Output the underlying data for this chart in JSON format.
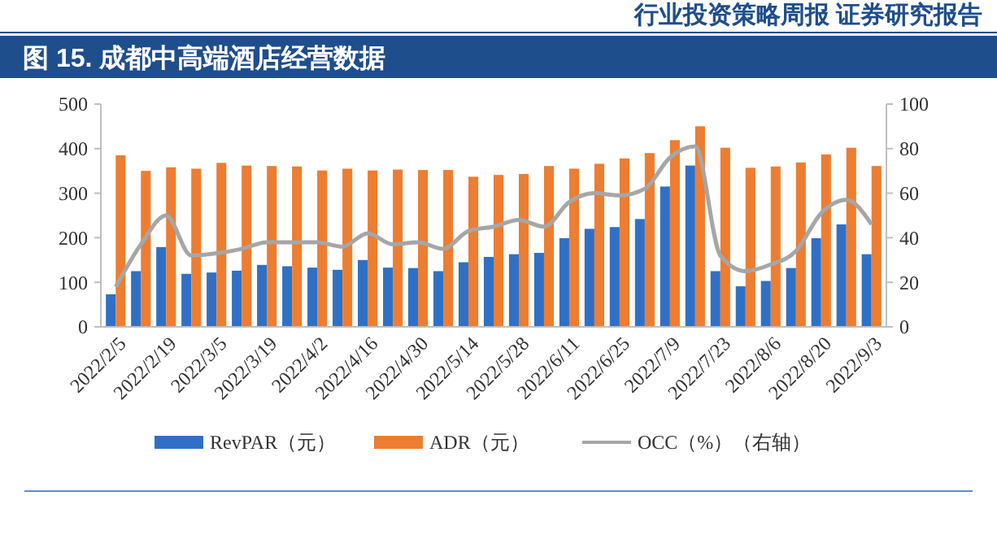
{
  "chart_data": {
    "type": "bar",
    "title": "图 15. 成都中高端酒店经营数据",
    "annotations": [
      "行业投资策略周报  证券研究报告"
    ],
    "categories": [
      "2022/2/5",
      null,
      "2022/2/19",
      null,
      "2022/3/5",
      null,
      "2022/3/19",
      null,
      "2022/4/2",
      null,
      "2022/4/16",
      null,
      "2022/4/30",
      null,
      "2022/5/14",
      null,
      "2022/5/28",
      null,
      "2022/6/11",
      null,
      "2022/6/25",
      null,
      "2022/7/9",
      null,
      "2022/7/23",
      null,
      "2022/8/6",
      null,
      "2022/8/20",
      null,
      "2022/9/3"
    ],
    "series": [
      {
        "name": "RevPAR（元）",
        "color": "#3070c4",
        "values": [
          73,
          125,
          179,
          119,
          122,
          126,
          139,
          136,
          133,
          128,
          150,
          133,
          132,
          125,
          145,
          157,
          163,
          166,
          199,
          220,
          224,
          242,
          315,
          362,
          125,
          91,
          103,
          132,
          199,
          230,
          163
        ]
      },
      {
        "name": "ADR（元）",
        "color": "#ed7d31",
        "values": [
          385,
          350,
          358,
          355,
          368,
          362,
          361,
          360,
          351,
          355,
          351,
          353,
          352,
          352,
          337,
          341,
          343,
          361,
          355,
          366,
          378,
          390,
          419,
          450,
          402,
          357,
          360,
          369,
          387,
          402,
          361
        ]
      },
      {
        "name": "OCC（%）（右轴）",
        "type": "line",
        "axis": "y2",
        "color": "#a6a6a6",
        "values": [
          18,
          37,
          50,
          32,
          33,
          35,
          38,
          38,
          38,
          36,
          42,
          37,
          38,
          35,
          43,
          45,
          48,
          45,
          56,
          60,
          59,
          62,
          76,
          81,
          32,
          25,
          28,
          34,
          51,
          57,
          46
        ]
      }
    ],
    "ylim": [
      0,
      500
    ],
    "yticks": [
      0,
      100,
      200,
      300,
      400,
      500
    ],
    "y2lim": [
      0,
      100
    ],
    "y2ticks": [
      0,
      20,
      40,
      60,
      80,
      100
    ],
    "grid": false,
    "legend": "bottom",
    "marker": "none",
    "line_style": "solid"
  }
}
